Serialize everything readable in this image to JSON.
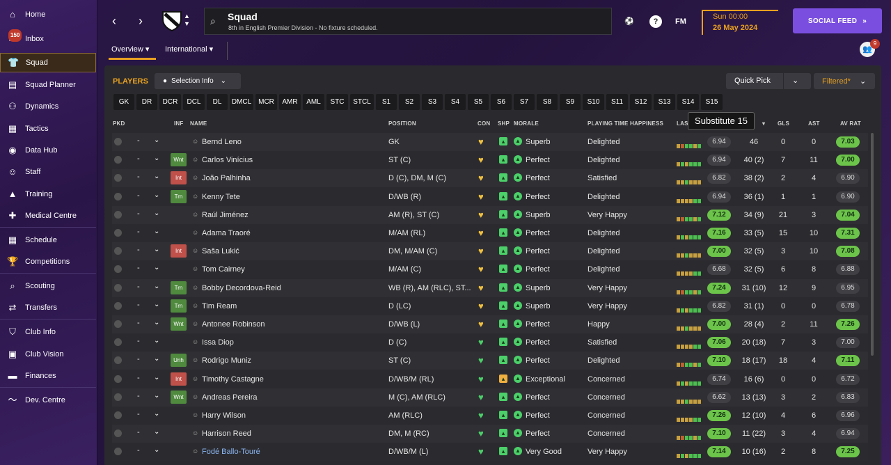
{
  "sidebar": {
    "items": [
      {
        "label": "Home",
        "icon": "home-icon"
      },
      {
        "label": "Inbox",
        "icon": "inbox-icon",
        "badge": "150"
      },
      {
        "label": "Squad",
        "icon": "squad-icon",
        "active": true
      },
      {
        "label": "Squad Planner",
        "icon": "clipboard-icon"
      },
      {
        "label": "Dynamics",
        "icon": "dynamics-icon"
      },
      {
        "label": "Tactics",
        "icon": "tactics-icon"
      },
      {
        "label": "Data Hub",
        "icon": "data-hub-icon"
      },
      {
        "label": "Staff",
        "icon": "staff-icon"
      },
      {
        "label": "Training",
        "icon": "training-icon"
      },
      {
        "label": "Medical Centre",
        "icon": "medical-icon"
      },
      {
        "label": "Schedule",
        "icon": "calendar-icon"
      },
      {
        "label": "Competitions",
        "icon": "trophy-icon"
      },
      {
        "label": "Scouting",
        "icon": "search-icon"
      },
      {
        "label": "Transfers",
        "icon": "transfers-icon"
      },
      {
        "label": "Club Info",
        "icon": "shield-icon"
      },
      {
        "label": "Club Vision",
        "icon": "briefcase-icon"
      },
      {
        "label": "Finances",
        "icon": "finances-icon"
      },
      {
        "label": "Dev. Centre",
        "icon": "dev-centre-icon"
      }
    ]
  },
  "header": {
    "title": "Squad",
    "subtitle": "8th in English Premier Division - No fixture scheduled.",
    "fm_label": "FM",
    "help_label": "?",
    "time": "Sun 00:00",
    "date": "26 May 2024",
    "social_feed_label": "SOCIAL FEED",
    "social_feed_chevron": "»",
    "people_badge": "9",
    "tabs": [
      {
        "label": "Overview"
      },
      {
        "label": "International"
      }
    ]
  },
  "panel": {
    "title": "PLAYERS",
    "selection_info_label": "Selection Info",
    "quick_pick_label": "Quick Pick",
    "filtered_label": "Filtered*",
    "positions": [
      "GK",
      "DR",
      "DCR",
      "DCL",
      "DL",
      "DMCL",
      "MCR",
      "AMR",
      "AML",
      "STC",
      "STCL",
      "S1",
      "S2",
      "S3",
      "S4",
      "S5",
      "S6",
      "S7",
      "S8",
      "S9",
      "S10",
      "S11",
      "S12",
      "S13",
      "S14",
      "S15"
    ],
    "tooltip": "Substitute 15"
  },
  "table": {
    "headers": {
      "pkd": "PKD",
      "inf": "INF",
      "name": "NAME",
      "position": "POSITION",
      "con": "CON",
      "shp": "SHP",
      "morale": "MORALE",
      "pth": "PLAYING TIME HAPPINESS",
      "las": "LAS",
      "gls": "GLS",
      "ast": "AST",
      "avrat": "AV RAT"
    },
    "rows": [
      {
        "dash": "-",
        "inf": "",
        "name": "Bernd Leno",
        "position": "GK",
        "morale": "Superb",
        "pth": "Delighted",
        "last": "6.94",
        "apps": "46",
        "gls": "0",
        "ast": "0",
        "avrat": "7.03",
        "lastgreen": false,
        "avgreen": true
      },
      {
        "dash": "-",
        "inf": "Wnt",
        "name": "Carlos Vinícius",
        "position": "ST (C)",
        "morale": "Perfect",
        "pth": "Delighted",
        "last": "6.94",
        "apps": "40 (2)",
        "gls": "7",
        "ast": "11",
        "avrat": "7.00",
        "lastgreen": false,
        "avgreen": true
      },
      {
        "dash": "-",
        "inf": "Int",
        "name": "João Palhinha",
        "position": "D (C), DM, M (C)",
        "morale": "Perfect",
        "pth": "Satisfied",
        "last": "6.82",
        "apps": "38 (2)",
        "gls": "2",
        "ast": "4",
        "avrat": "6.90",
        "lastgreen": false,
        "avgreen": false
      },
      {
        "dash": "-",
        "inf": "Trn",
        "name": "Kenny Tete",
        "position": "D/WB (R)",
        "morale": "Perfect",
        "pth": "Delighted",
        "last": "6.94",
        "apps": "36 (1)",
        "gls": "1",
        "ast": "1",
        "avrat": "6.90",
        "lastgreen": false,
        "avgreen": false
      },
      {
        "dash": "-",
        "inf": "",
        "name": "Raúl Jiménez",
        "position": "AM (R), ST (C)",
        "morale": "Superb",
        "pth": "Very Happy",
        "last": "7.12",
        "apps": "34 (9)",
        "gls": "21",
        "ast": "3",
        "avrat": "7.04",
        "lastgreen": true,
        "avgreen": true
      },
      {
        "dash": "-",
        "inf": "",
        "name": "Adama Traoré",
        "position": "M/AM (RL)",
        "morale": "Perfect",
        "pth": "Delighted",
        "last": "7.16",
        "apps": "33 (5)",
        "gls": "15",
        "ast": "10",
        "avrat": "7.31",
        "lastgreen": true,
        "avgreen": true
      },
      {
        "dash": "-",
        "inf": "Int",
        "name": "Saša Lukić",
        "position": "DM, M/AM (C)",
        "morale": "Perfect",
        "pth": "Delighted",
        "last": "7.00",
        "apps": "32 (5)",
        "gls": "3",
        "ast": "10",
        "avrat": "7.08",
        "lastgreen": true,
        "avgreen": true
      },
      {
        "dash": "-",
        "inf": "",
        "name": "Tom Cairney",
        "position": "M/AM (C)",
        "morale": "Perfect",
        "pth": "Delighted",
        "last": "6.68",
        "apps": "32 (5)",
        "gls": "6",
        "ast": "8",
        "avrat": "6.88",
        "lastgreen": false,
        "avgreen": false
      },
      {
        "dash": "-",
        "inf": "Trn",
        "name": "Bobby Decordova-Reid",
        "position": "WB (R), AM (RLC), ST...",
        "morale": "Superb",
        "pth": "Very Happy",
        "last": "7.24",
        "apps": "31 (10)",
        "gls": "12",
        "ast": "9",
        "avrat": "6.95",
        "lastgreen": true,
        "avgreen": false
      },
      {
        "dash": "-",
        "inf": "Trn",
        "name": "Tim Ream",
        "position": "D (LC)",
        "morale": "Superb",
        "pth": "Very Happy",
        "last": "6.82",
        "apps": "31 (1)",
        "gls": "0",
        "ast": "0",
        "avrat": "6.78",
        "lastgreen": false,
        "avgreen": false
      },
      {
        "dash": "-",
        "inf": "Wnt",
        "name": "Antonee Robinson",
        "position": "D/WB (L)",
        "morale": "Perfect",
        "pth": "Happy",
        "last": "7.00",
        "apps": "28 (4)",
        "gls": "2",
        "ast": "11",
        "avrat": "7.26",
        "lastgreen": true,
        "avgreen": true
      },
      {
        "dash": "-",
        "inf": "",
        "name": "Issa Diop",
        "position": "D (C)",
        "morale": "Perfect",
        "pth": "Satisfied",
        "last": "7.06",
        "apps": "20 (18)",
        "gls": "7",
        "ast": "3",
        "avrat": "7.00",
        "lastgreen": true,
        "avgreen": false
      },
      {
        "dash": "-",
        "inf": "Unh",
        "name": "Rodrigo Muniz",
        "position": "ST (C)",
        "morale": "Perfect",
        "pth": "Delighted",
        "last": "7.10",
        "apps": "18 (17)",
        "gls": "18",
        "ast": "4",
        "avrat": "7.11",
        "lastgreen": true,
        "avgreen": true
      },
      {
        "dash": "-",
        "inf": "Int",
        "name": "Timothy Castagne",
        "position": "D/WB/M (RL)",
        "morale": "Exceptional",
        "pth": "Concerned",
        "last": "6.74",
        "apps": "16 (6)",
        "gls": "0",
        "ast": "0",
        "avrat": "6.72",
        "lastgreen": false,
        "avgreen": false
      },
      {
        "dash": "-",
        "inf": "Wnt",
        "name": "Andreas Pereira",
        "position": "M (C), AM (RLC)",
        "morale": "Perfect",
        "pth": "Concerned",
        "last": "6.62",
        "apps": "13 (13)",
        "gls": "3",
        "ast": "2",
        "avrat": "6.83",
        "lastgreen": false,
        "avgreen": false
      },
      {
        "dash": "-",
        "inf": "",
        "name": "Harry Wilson",
        "position": "AM (RLC)",
        "morale": "Perfect",
        "pth": "Concerned",
        "last": "7.26",
        "apps": "12 (10)",
        "gls": "4",
        "ast": "6",
        "avrat": "6.96",
        "lastgreen": true,
        "avgreen": false
      },
      {
        "dash": "-",
        "inf": "",
        "name": "Harrison Reed",
        "position": "DM, M (RC)",
        "morale": "Perfect",
        "pth": "Concerned",
        "last": "7.10",
        "apps": "11 (22)",
        "gls": "3",
        "ast": "4",
        "avrat": "6.94",
        "lastgreen": true,
        "avgreen": false
      },
      {
        "dash": "-",
        "inf": "",
        "name": "Fodé Ballo-Touré",
        "position": "D/WB/M (L)",
        "morale": "Very Good",
        "pth": "Very Happy",
        "last": "7.14",
        "apps": "10 (16)",
        "gls": "2",
        "ast": "8",
        "avrat": "7.25",
        "lastgreen": true,
        "avgreen": true
      }
    ]
  },
  "colors": {
    "accent": "#e8a020",
    "social": "#7a4fe0",
    "good": "#6cc44a",
    "injury": "#c0504a",
    "positive": "#4f8a3e"
  }
}
